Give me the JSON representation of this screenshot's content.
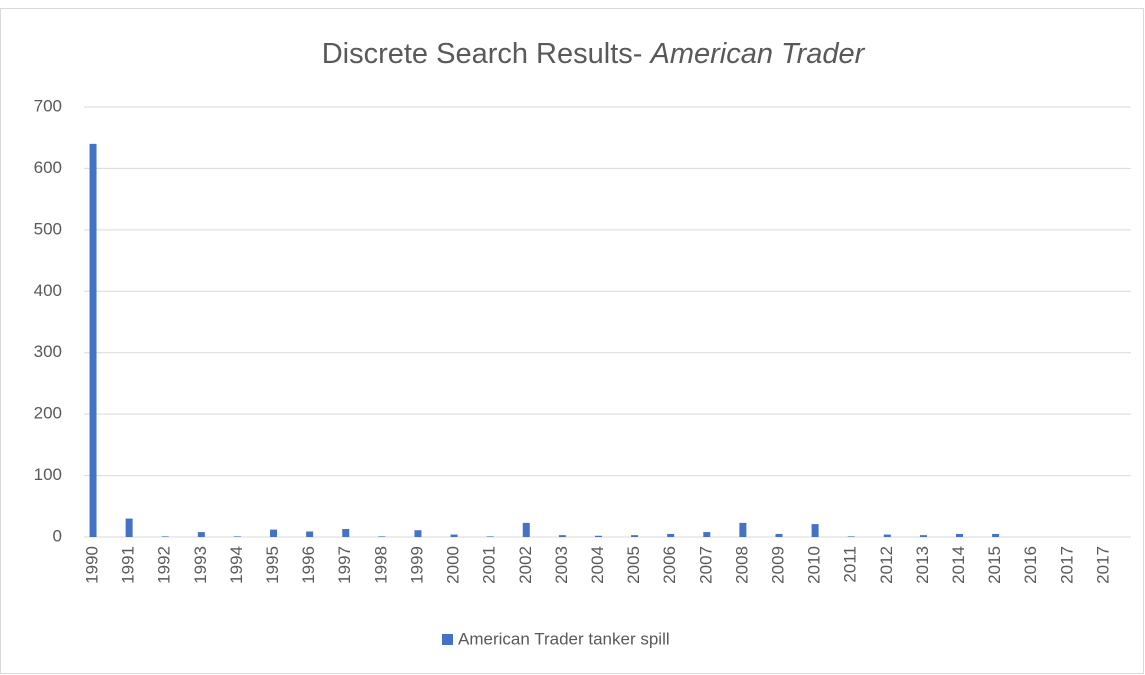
{
  "chart_data": {
    "type": "bar",
    "title": [
      "Discrete Search Results- ",
      "American Trader"
    ],
    "categories": [
      "1990",
      "1991",
      "1992",
      "1993",
      "1994",
      "1995",
      "1996",
      "1997",
      "1998",
      "1999",
      "2000",
      "2001",
      "2002",
      "2003",
      "2004",
      "2005",
      "2006",
      "2007",
      "2008",
      "2009",
      "2010",
      "2011",
      "2012",
      "2013",
      "2014",
      "2015",
      "2016",
      "2017",
      "2017"
    ],
    "series": [
      {
        "name": "American Trader tanker spill",
        "color": "#4472c4",
        "values": [
          640,
          30,
          1,
          8,
          1,
          12,
          9,
          13,
          1,
          11,
          4,
          1,
          23,
          3,
          2,
          3,
          5,
          8,
          23,
          5,
          21,
          1,
          4,
          3,
          5,
          5,
          0,
          0,
          0
        ]
      }
    ],
    "ylim": [
      0,
      700
    ],
    "yticks": [
      0,
      100,
      200,
      300,
      400,
      500,
      600,
      700
    ],
    "grid": true,
    "legend": "bottom"
  }
}
